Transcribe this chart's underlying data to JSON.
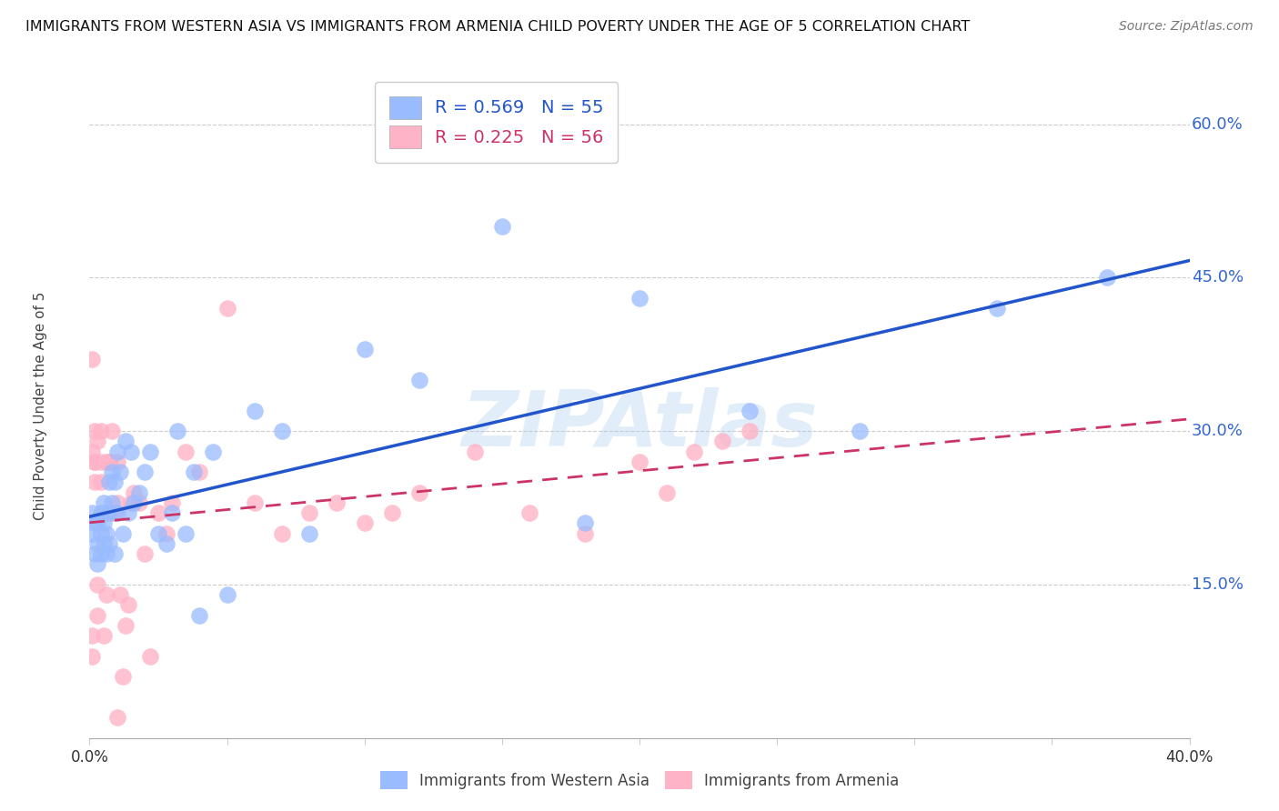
{
  "title": "IMMIGRANTS FROM WESTERN ASIA VS IMMIGRANTS FROM ARMENIA CHILD POVERTY UNDER THE AGE OF 5 CORRELATION CHART",
  "source": "Source: ZipAtlas.com",
  "ylabel": "Child Poverty Under the Age of 5",
  "ytick_labels": [
    "15.0%",
    "30.0%",
    "45.0%",
    "60.0%"
  ],
  "ytick_values": [
    0.15,
    0.3,
    0.45,
    0.6
  ],
  "xlim": [
    0.0,
    0.4
  ],
  "ylim": [
    0.0,
    0.65
  ],
  "legend1_r": "R = 0.569",
  "legend1_n": "N = 55",
  "legend2_r": "R = 0.225",
  "legend2_n": "N = 56",
  "blue_color": "#99BBFF",
  "pink_color": "#FFB3C6",
  "blue_line_color": "#2255CC",
  "pink_line_color": "#CC3366",
  "watermark": "ZIPAtlas",
  "background_color": "#FFFFFF",
  "western_asia_x": [
    0.001,
    0.001,
    0.002,
    0.002,
    0.003,
    0.003,
    0.003,
    0.004,
    0.004,
    0.004,
    0.005,
    0.005,
    0.005,
    0.006,
    0.006,
    0.006,
    0.007,
    0.007,
    0.007,
    0.008,
    0.008,
    0.009,
    0.009,
    0.01,
    0.01,
    0.011,
    0.012,
    0.013,
    0.014,
    0.015,
    0.016,
    0.018,
    0.02,
    0.022,
    0.025,
    0.028,
    0.03,
    0.032,
    0.035,
    0.038,
    0.04,
    0.045,
    0.05,
    0.06,
    0.07,
    0.08,
    0.1,
    0.12,
    0.15,
    0.18,
    0.2,
    0.24,
    0.28,
    0.33,
    0.37
  ],
  "western_asia_y": [
    0.2,
    0.22,
    0.18,
    0.21,
    0.17,
    0.19,
    0.21,
    0.2,
    0.22,
    0.18,
    0.19,
    0.21,
    0.23,
    0.2,
    0.18,
    0.22,
    0.22,
    0.25,
    0.19,
    0.26,
    0.23,
    0.18,
    0.25,
    0.22,
    0.28,
    0.26,
    0.2,
    0.29,
    0.22,
    0.28,
    0.23,
    0.24,
    0.26,
    0.28,
    0.2,
    0.19,
    0.22,
    0.3,
    0.2,
    0.26,
    0.12,
    0.28,
    0.14,
    0.32,
    0.3,
    0.2,
    0.38,
    0.35,
    0.5,
    0.21,
    0.43,
    0.32,
    0.3,
    0.42,
    0.45
  ],
  "armenia_x": [
    0.001,
    0.001,
    0.001,
    0.001,
    0.002,
    0.002,
    0.002,
    0.002,
    0.003,
    0.003,
    0.003,
    0.004,
    0.004,
    0.004,
    0.005,
    0.005,
    0.006,
    0.006,
    0.007,
    0.007,
    0.008,
    0.008,
    0.009,
    0.01,
    0.01,
    0.011,
    0.012,
    0.013,
    0.014,
    0.015,
    0.016,
    0.018,
    0.02,
    0.022,
    0.025,
    0.028,
    0.03,
    0.035,
    0.04,
    0.05,
    0.06,
    0.07,
    0.08,
    0.09,
    0.1,
    0.11,
    0.12,
    0.14,
    0.16,
    0.18,
    0.2,
    0.21,
    0.22,
    0.23,
    0.24,
    0.01
  ],
  "armenia_y": [
    0.37,
    0.28,
    0.1,
    0.08,
    0.25,
    0.27,
    0.27,
    0.3,
    0.12,
    0.15,
    0.29,
    0.25,
    0.27,
    0.3,
    0.22,
    0.1,
    0.27,
    0.14,
    0.27,
    0.27,
    0.22,
    0.3,
    0.22,
    0.27,
    0.23,
    0.14,
    0.06,
    0.11,
    0.13,
    0.23,
    0.24,
    0.23,
    0.18,
    0.08,
    0.22,
    0.2,
    0.23,
    0.28,
    0.26,
    0.42,
    0.23,
    0.2,
    0.22,
    0.23,
    0.21,
    0.22,
    0.24,
    0.28,
    0.22,
    0.2,
    0.27,
    0.24,
    0.28,
    0.29,
    0.3,
    0.02
  ]
}
